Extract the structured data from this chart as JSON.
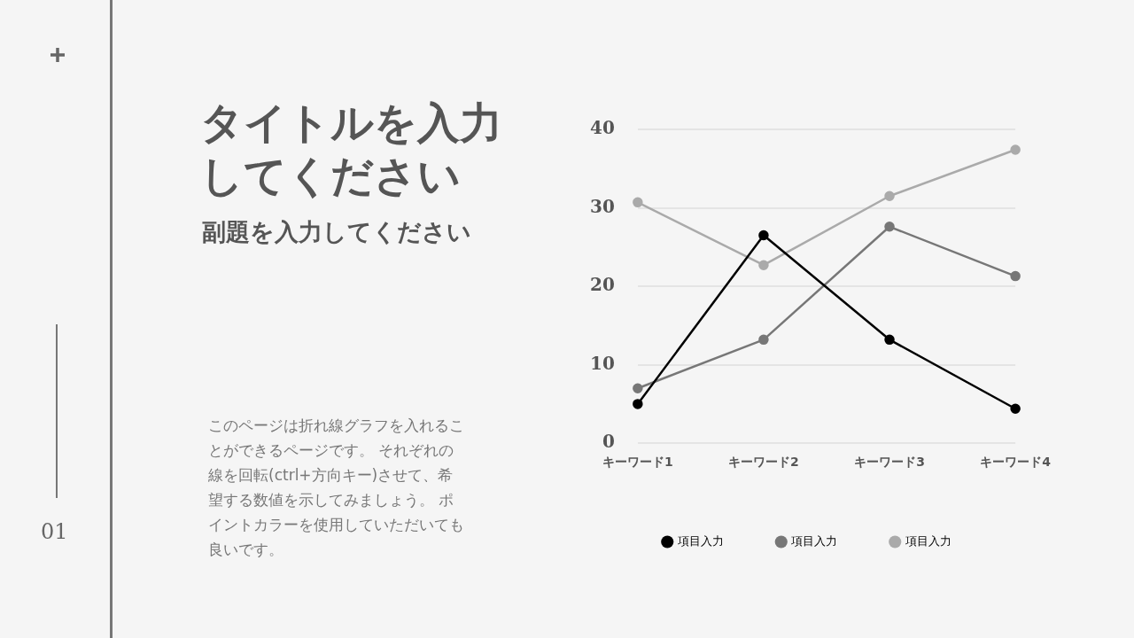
{
  "chart_data": {
    "type": "line",
    "title": "タイトルを入力してください",
    "subtitle": "副題を入力してください",
    "annotations": [
      "このページは折れ線グラフを入れることができるページです。 それぞれの線を回転(ctrl+方向キー)させて、希望する数値を示してみましょう。 ポイントカラーを使用していただいても良いです。",
      "01"
    ],
    "categories": [
      "キーワード1",
      "キーワード2",
      "キーワード3",
      "キーワード4"
    ],
    "series": [
      {
        "name": "項目入力",
        "color": "#000000",
        "values": [
          5.0,
          26.5,
          13.2,
          4.4
        ]
      },
      {
        "name": "項目入力",
        "color": "#777777",
        "values": [
          7.0,
          13.2,
          27.6,
          21.3
        ]
      },
      {
        "name": "項目入力",
        "color": "#aaaaaa",
        "values": [
          30.7,
          22.7,
          31.5,
          37.4
        ]
      }
    ],
    "ylim": [
      0,
      40
    ],
    "yticks": [
      0,
      10,
      20,
      30,
      40
    ],
    "grid": "y",
    "legend": "bottom",
    "marker": "circle",
    "line_style": "solid"
  }
}
